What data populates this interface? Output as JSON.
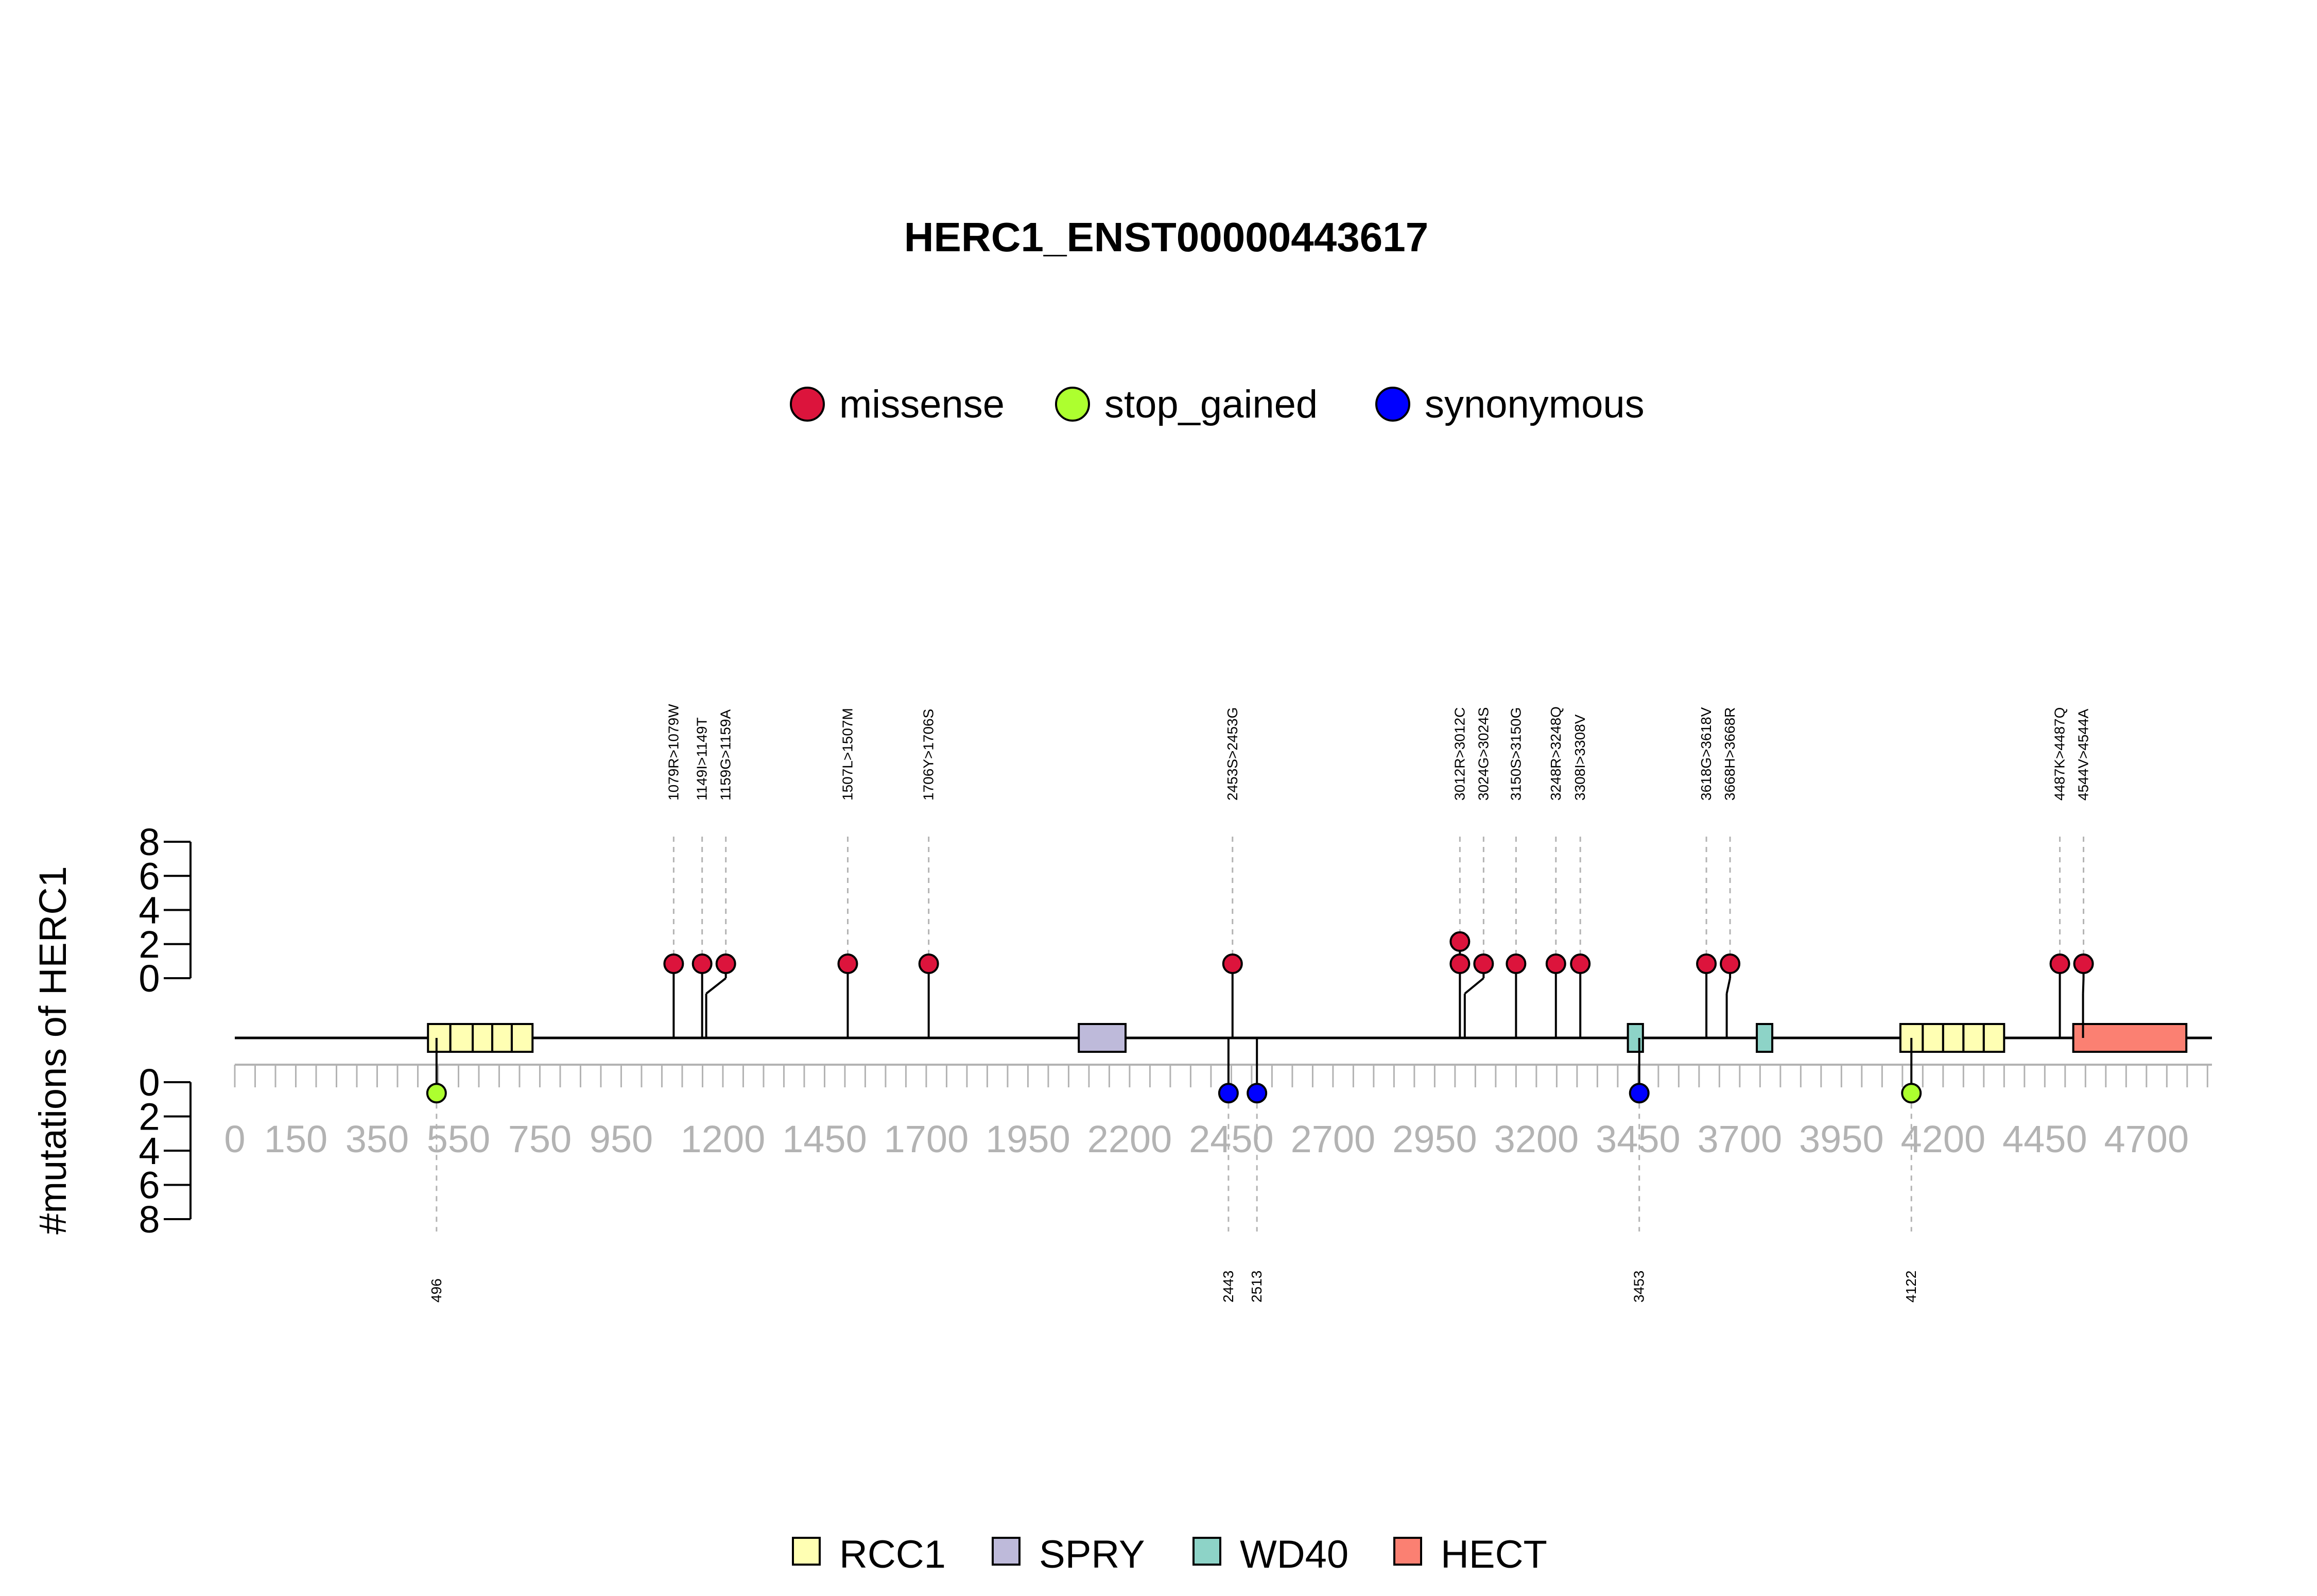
{
  "chart_data": {
    "type": "lollipop",
    "title": "HERC1_ENST00000443617",
    "ylabel": "#mutations of HERC1",
    "xlim": [
      0,
      4861
    ],
    "ylim_top": [
      0,
      8
    ],
    "ylim_bottom": [
      0,
      8
    ],
    "y_ticks": [
      "0",
      "2",
      "4",
      "6",
      "8"
    ],
    "x_tick_labels": [
      "0",
      "150",
      "350",
      "550",
      "750",
      "950",
      "1200",
      "1450",
      "1700",
      "1950",
      "2200",
      "2450",
      "2700",
      "2950",
      "3200",
      "3450",
      "3700",
      "3950",
      "4200",
      "4450",
      "4700"
    ],
    "x_tick_values": [
      0,
      150,
      350,
      550,
      750,
      950,
      1200,
      1450,
      1700,
      1950,
      2200,
      2450,
      2700,
      2950,
      3200,
      3450,
      3700,
      3950,
      4200,
      4450,
      4700
    ],
    "mutation_legend": [
      {
        "name": "missense",
        "color": "#dc143c"
      },
      {
        "name": "stop_gained",
        "color": "#adff2f"
      },
      {
        "name": "synonymous",
        "color": "#0000ff"
      }
    ],
    "domain_legend": [
      {
        "name": "RCC1",
        "color": "#ffffb3"
      },
      {
        "name": "SPRY",
        "color": "#bebada"
      },
      {
        "name": "WD40",
        "color": "#8dd3c7"
      },
      {
        "name": "HECT",
        "color": "#fb8072"
      }
    ],
    "domains": [
      {
        "name": "RCC1",
        "start": 475,
        "end": 530
      },
      {
        "name": "RCC1",
        "start": 530,
        "end": 585
      },
      {
        "name": "RCC1",
        "start": 585,
        "end": 633
      },
      {
        "name": "RCC1",
        "start": 633,
        "end": 681
      },
      {
        "name": "RCC1",
        "start": 681,
        "end": 732
      },
      {
        "name": "SPRY",
        "start": 2075,
        "end": 2190
      },
      {
        "name": "WD40",
        "start": 3425,
        "end": 3462
      },
      {
        "name": "WD40",
        "start": 3742,
        "end": 3780
      },
      {
        "name": "RCC1",
        "start": 4095,
        "end": 4150
      },
      {
        "name": "RCC1",
        "start": 4150,
        "end": 4200
      },
      {
        "name": "RCC1",
        "start": 4200,
        "end": 4250
      },
      {
        "name": "RCC1",
        "start": 4250,
        "end": 4300
      },
      {
        "name": "RCC1",
        "start": 4300,
        "end": 4350
      },
      {
        "name": "HECT",
        "start": 4520,
        "end": 4798
      }
    ],
    "top_mutations": [
      {
        "label": "1079R>1079W",
        "position": 1079,
        "count": 1,
        "type": "missense"
      },
      {
        "label": "1149I>1149T",
        "position": 1149,
        "count": 1,
        "type": "missense"
      },
      {
        "label": "1159G>1159A",
        "position": 1159,
        "count": 1,
        "type": "missense"
      },
      {
        "label": "1507L>1507M",
        "position": 1507,
        "count": 1,
        "type": "missense"
      },
      {
        "label": "1706Y>1706S",
        "position": 1706,
        "count": 1,
        "type": "missense"
      },
      {
        "label": "2453S>2453G",
        "position": 2453,
        "count": 1,
        "type": "missense"
      },
      {
        "label": "3012R>3012C",
        "position": 3012,
        "count": 2,
        "type": "missense"
      },
      {
        "label": "3024G>3024S",
        "position": 3024,
        "count": 1,
        "type": "missense"
      },
      {
        "label": "3150S>3150G",
        "position": 3150,
        "count": 1,
        "type": "missense"
      },
      {
        "label": "3248R>3248Q",
        "position": 3248,
        "count": 1,
        "type": "missense"
      },
      {
        "label": "3308I>3308V",
        "position": 3308,
        "count": 1,
        "type": "missense"
      },
      {
        "label": "3618G>3618V",
        "position": 3618,
        "count": 1,
        "type": "missense"
      },
      {
        "label": "3668H>3668R",
        "position": 3668,
        "count": 1,
        "type": "missense"
      },
      {
        "label": "4487K>4487Q",
        "position": 4487,
        "count": 1,
        "type": "missense"
      },
      {
        "label": "4544V>4544A",
        "position": 4544,
        "count": 1,
        "type": "missense"
      }
    ],
    "bottom_mutations": [
      {
        "label": "496",
        "position": 496,
        "count": 1,
        "type": "stop_gained"
      },
      {
        "label": "2443",
        "position": 2443,
        "count": 1,
        "type": "synonymous"
      },
      {
        "label": "2513",
        "position": 2513,
        "count": 1,
        "type": "synonymous"
      },
      {
        "label": "3453",
        "position": 3453,
        "count": 1,
        "type": "synonymous"
      },
      {
        "label": "4122",
        "position": 4122,
        "count": 1,
        "type": "stop_gained"
      }
    ]
  }
}
